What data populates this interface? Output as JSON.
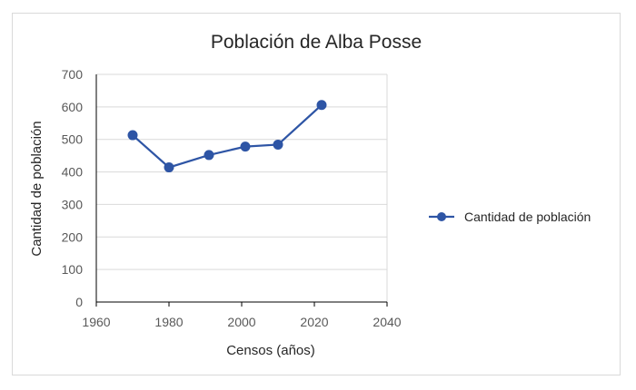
{
  "chart_data": {
    "type": "scatter",
    "title": "Población de Alba Posse",
    "xlabel": "Censos (años)",
    "ylabel": "Cantidad de población",
    "xlim": [
      1960,
      2040
    ],
    "ylim": [
      0,
      700
    ],
    "xticks": [
      "1960",
      "1980",
      "2000",
      "2020",
      "2040"
    ],
    "yticks": [
      "0",
      "100",
      "200",
      "300",
      "400",
      "500",
      "600",
      "700"
    ],
    "grid": true,
    "legend_position": "right",
    "series": [
      {
        "name": "Cantidad de población",
        "color": "#2E55A5",
        "x": [
          1970,
          1980,
          1991,
          2001,
          2010,
          2022
        ],
        "y": [
          513,
          414,
          452,
          478,
          484,
          606
        ]
      }
    ]
  }
}
